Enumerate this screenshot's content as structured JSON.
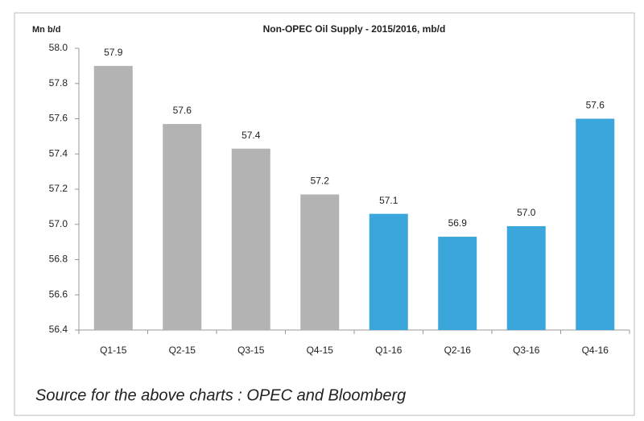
{
  "chart_data": {
    "type": "bar",
    "title": "Non-OPEC Oil Supply - 2015/2016, mb/d",
    "y_axis_label": "Mn b/d",
    "source": "Source for the above charts : OPEC and Bloomberg",
    "categories": [
      "Q1-15",
      "Q2-15",
      "Q3-15",
      "Q4-15",
      "Q1-16",
      "Q2-16",
      "Q3-16",
      "Q4-16"
    ],
    "values": [
      57.9,
      57.57,
      57.43,
      57.17,
      57.06,
      56.93,
      56.99,
      57.6
    ],
    "value_labels": [
      "57.9",
      "57.6",
      "57.4",
      "57.2",
      "57.1",
      "56.9",
      "57.0",
      "57.6"
    ],
    "colors": [
      "#b3b3b3",
      "#b3b3b3",
      "#b3b3b3",
      "#b3b3b3",
      "#3aa6dc",
      "#3aa6dc",
      "#3aa6dc",
      "#3aa6dc"
    ],
    "ylim": [
      56.4,
      58.0
    ],
    "yticks": [
      56.4,
      56.6,
      56.8,
      {
        "value": 57.0,
        "label": "57.0"
      },
      57.2,
      57.4,
      57.6,
      57.8,
      {
        "value": 58.0,
        "label": "58.0"
      }
    ],
    "grid": false
  }
}
